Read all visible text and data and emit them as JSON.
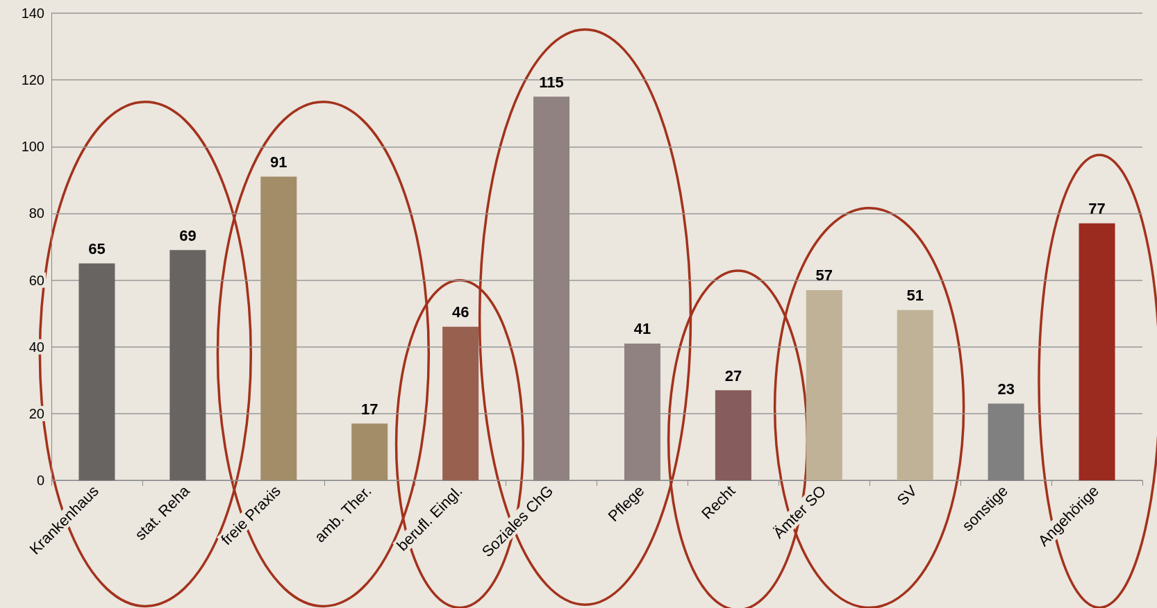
{
  "chart_data": {
    "type": "bar",
    "categories": [
      "Krankenhaus",
      "stat. Reha",
      "freie Praxis",
      "amb. Ther.",
      "berufl. Eingl.",
      "Soziales ChG",
      "Pflege",
      "Recht",
      "Ämter SO",
      "SV",
      "sonstige",
      "Angehörige"
    ],
    "values": [
      65,
      69,
      91,
      17,
      46,
      115,
      41,
      27,
      57,
      51,
      23,
      77
    ],
    "colors": [
      "#686462",
      "#686462",
      "#a38d69",
      "#a38d69",
      "#98604f",
      "#8f8280",
      "#8f8280",
      "#875c5c",
      "#bfb296",
      "#bfb296",
      "#808080",
      "#9b2a1f"
    ],
    "ylim": [
      0,
      140
    ],
    "yticks": [
      0,
      20,
      40,
      60,
      80,
      100,
      120,
      140
    ],
    "grid": "y",
    "data_labels": true
  }
}
